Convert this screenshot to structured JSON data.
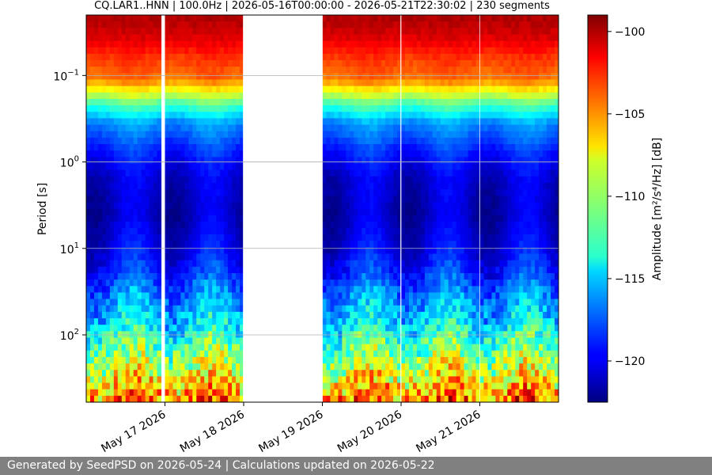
{
  "chart_data": {
    "type": "heatmap",
    "title": "CQ.LAR1..HNN | 100.0Hz | 2026-05-16T00:00:00 - 2026-05-21T22:30:02 | 230 segments",
    "ylabel": "Period [s]",
    "colorbar_label": "Amplitude [m²/s⁴/Hz] [dB]",
    "colormap": "jet",
    "xlim": [
      "2026-05-16T00:00",
      "2026-05-22T00:00"
    ],
    "x_ticks": [
      {
        "date": "2026-05-17",
        "label": "May 17 2026"
      },
      {
        "date": "2026-05-18",
        "label": "May 18 2026"
      },
      {
        "date": "2026-05-19",
        "label": "May 19 2026"
      },
      {
        "date": "2026-05-20",
        "label": "May 20 2026"
      },
      {
        "date": "2026-05-21",
        "label": "May 21 2026"
      }
    ],
    "y_scale": "log",
    "y_inverted": true,
    "ylim": [
      0.02,
      600
    ],
    "y_ticks": [
      {
        "value": 0.1,
        "base": "10",
        "exp": "−1"
      },
      {
        "value": 1,
        "base": "10",
        "exp": "0"
      },
      {
        "value": 10,
        "base": "10",
        "exp": "1"
      },
      {
        "value": 100,
        "base": "10",
        "exp": "2"
      }
    ],
    "grid": "horizontal",
    "zlim": [
      -122.5,
      -99
    ],
    "colorbar_ticks": [
      -100,
      -105,
      -110,
      -115,
      -120
    ],
    "colorbar_tick_labels": [
      "−100",
      "−105",
      "−110",
      "−115",
      "−120"
    ],
    "data_gaps": [
      [
        "2026-05-16T23:00",
        "2026-05-17T00:00"
      ],
      [
        "2026-05-17T23:48",
        "2026-05-19T00:05"
      ],
      [
        "2026-05-19T23:48",
        "2026-05-20T00:05"
      ],
      [
        "2026-05-20T23:55",
        "2026-05-21T00:05"
      ]
    ],
    "band_profile_db": [
      {
        "period": 0.02,
        "value": -100
      },
      {
        "period": 0.035,
        "value": -101
      },
      {
        "period": 0.06,
        "value": -103
      },
      {
        "period": 0.11,
        "value": -104.5
      },
      {
        "period": 0.2,
        "value": -111
      },
      {
        "period": 0.35,
        "value": -116
      },
      {
        "period": 0.7,
        "value": -118.5
      },
      {
        "period": 1.5,
        "value": -120.5
      },
      {
        "period": 4,
        "value": -121
      },
      {
        "period": 10,
        "value": -120
      },
      {
        "period": 20,
        "value": -118.5
      },
      {
        "period": 40,
        "value": -116
      },
      {
        "period": 80,
        "value": -114
      },
      {
        "period": 150,
        "value": -111
      },
      {
        "period": 300,
        "value": -108
      },
      {
        "period": 600,
        "value": -104
      }
    ]
  },
  "footer_text": "Generated by SeedPSD on 2026-05-24 | Calculations updated on 2026-05-22"
}
